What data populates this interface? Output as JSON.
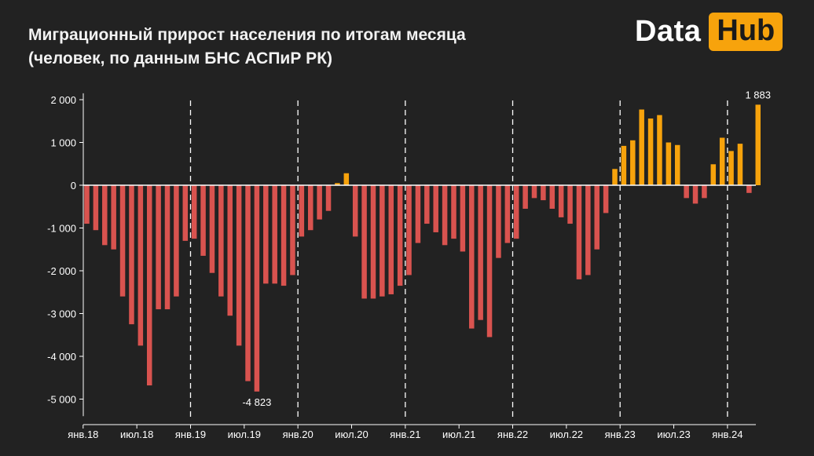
{
  "header": {
    "title_line1": "Миграционный прирост населения по итогам месяца",
    "title_line2": "(человек, по данным БНС АСПиР РК)"
  },
  "logo": {
    "part1": "Data",
    "part2": "Hub"
  },
  "colors": {
    "negative": "#d9534f",
    "positive": "#f7a30c",
    "background": "#222222",
    "logo_accent": "#f7a30c"
  },
  "chart_data": {
    "type": "bar",
    "title": "Миграционный прирост населения по итогам месяца (человек, по данным БНС АСПиР РК)",
    "xlabel": "",
    "ylabel": "",
    "ylim": [
      -5400,
      2150
    ],
    "y_ticks": [
      2000,
      1000,
      0,
      -1000,
      -2000,
      -3000,
      -4000,
      -5000
    ],
    "y_tick_labels": [
      "2 000",
      "1 000",
      "0",
      "-1 000",
      "-2 000",
      "-3 000",
      "-4 000",
      "-5 000"
    ],
    "x_tick_labels": [
      {
        "label": "янв.18",
        "index": 0
      },
      {
        "label": "июл.18",
        "index": 6
      },
      {
        "label": "янв.19",
        "index": 12
      },
      {
        "label": "июл.19",
        "index": 18
      },
      {
        "label": "янв.20",
        "index": 24
      },
      {
        "label": "июл.20",
        "index": 30
      },
      {
        "label": "янв.21",
        "index": 36
      },
      {
        "label": "июл.21",
        "index": 42
      },
      {
        "label": "янв.22",
        "index": 48
      },
      {
        "label": "июл.22",
        "index": 54
      },
      {
        "label": "янв.23",
        "index": 60
      },
      {
        "label": "июл.23",
        "index": 66
      },
      {
        "label": "янв.24",
        "index": 72
      }
    ],
    "year_dividers_at_index": [
      12,
      24,
      36,
      48,
      60,
      72
    ],
    "values": [
      -900,
      -1050,
      -1400,
      -1500,
      -2600,
      -3250,
      -3750,
      -4680,
      -2900,
      -2900,
      -2600,
      -1300,
      -1250,
      -1650,
      -2050,
      -2600,
      -3050,
      -3750,
      -4580,
      -4823,
      -2300,
      -2300,
      -2350,
      -2100,
      -1200,
      -1050,
      -800,
      -600,
      50,
      280,
      -1200,
      -2650,
      -2650,
      -2600,
      -2550,
      -2350,
      -2100,
      -1350,
      -900,
      -1100,
      -1400,
      -1250,
      -1550,
      -3350,
      -3150,
      -3550,
      -1700,
      -1350,
      -1250,
      -550,
      -300,
      -350,
      -550,
      -750,
      -900,
      -2200,
      -2100,
      -1500,
      -650,
      380,
      920,
      1050,
      1770,
      1560,
      1640,
      1000,
      940,
      -300,
      -430,
      -300,
      490,
      1110,
      800,
      970,
      -180,
      1883
    ],
    "data_labels": [
      {
        "index": 19,
        "text": "-4 823"
      },
      {
        "index": 75,
        "text": "1 883"
      }
    ]
  }
}
